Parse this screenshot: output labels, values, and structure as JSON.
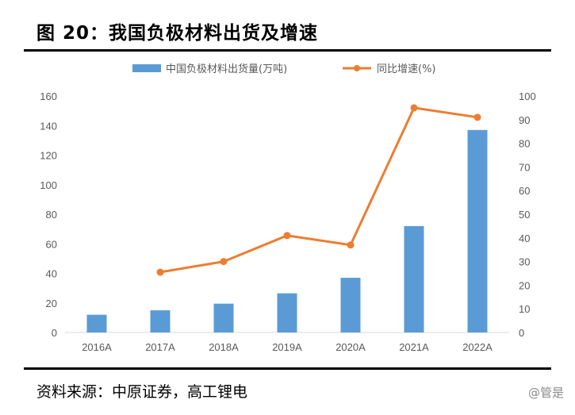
{
  "header": {
    "title": "图 20：我国负极材料出货及增速"
  },
  "footer": {
    "source": "资料来源：中原证券，高工锂电",
    "watermark": "@管是"
  },
  "colors": {
    "bar": "#5b9bd5",
    "line": "#ed7d31",
    "axis": "#d9d9d9",
    "tick_text": "#595959"
  },
  "chart_data": {
    "type": "bar",
    "categories": [
      "2016A",
      "2017A",
      "2018A",
      "2019A",
      "2020A",
      "2021A",
      "2022A"
    ],
    "series": [
      {
        "name": "中国负极材料出货量(万吨)",
        "type": "bar",
        "axis": "left",
        "values": [
          12,
          15,
          19.5,
          26.5,
          37,
          72,
          137
        ]
      },
      {
        "name": "同比增速(%)",
        "type": "line",
        "axis": "right",
        "values": [
          null,
          25.5,
          30,
          41,
          37,
          95,
          91
        ]
      }
    ],
    "y_left": {
      "min": 0,
      "max": 160,
      "ticks": [
        "0",
        "20",
        "40",
        "60",
        "80",
        "100",
        "120",
        "140",
        "160"
      ]
    },
    "y_right": {
      "min": 0,
      "max": 100,
      "ticks": [
        "0",
        "10",
        "20",
        "30",
        "40",
        "50",
        "60",
        "70",
        "80",
        "90",
        "100"
      ]
    },
    "legend_position": "top-center",
    "grid": false
  }
}
